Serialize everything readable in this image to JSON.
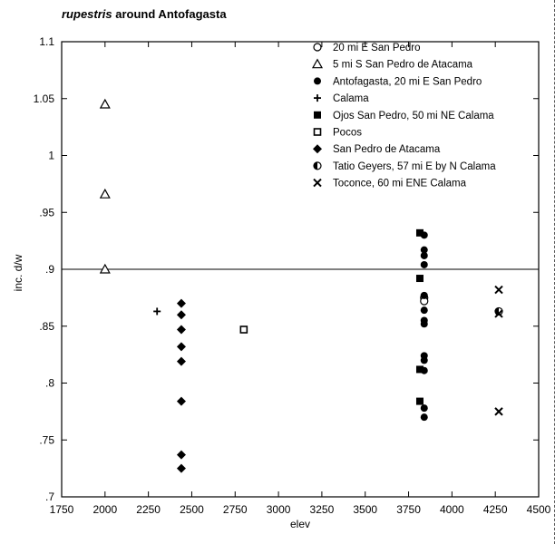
{
  "chart_data": {
    "type": "scatter",
    "title_italic": "rupestris",
    "title_rest": " around Antofagasta",
    "xlabel": "elev",
    "ylabel": "inc. d/w",
    "xlim": [
      1750,
      4500
    ],
    "ylim": [
      0.7,
      1.1
    ],
    "x_ticks": [
      1750,
      2000,
      2250,
      2500,
      2750,
      3000,
      3250,
      3500,
      3750,
      4000,
      4250,
      4500
    ],
    "y_ticks": [
      0.7,
      0.75,
      0.8,
      0.85,
      0.9,
      0.95,
      1.0,
      1.05,
      1.1
    ],
    "y_tick_labels": [
      ".7",
      ".75",
      ".8",
      ".85",
      ".9",
      ".95",
      "1",
      "1.05",
      "1.1"
    ],
    "reference_line_y": 0.9,
    "legend_position": "top-right",
    "grid": false,
    "series": [
      {
        "name": "20 mi E San Pedro",
        "marker": "open-circle",
        "points": [
          [
            3840,
            0.875
          ],
          [
            3840,
            0.872
          ]
        ]
      },
      {
        "name": "5 mi S San Pedro de Atacama",
        "marker": "open-triangle",
        "points": [
          [
            2000,
            1.045
          ],
          [
            2000,
            0.966
          ],
          [
            2000,
            0.9
          ]
        ]
      },
      {
        "name": "Antofagasta, 20 mi E San Pedro",
        "marker": "filled-circle",
        "points": [
          [
            3840,
            0.93
          ],
          [
            3840,
            0.917
          ],
          [
            3840,
            0.912
          ],
          [
            3840,
            0.904
          ],
          [
            3840,
            0.877
          ],
          [
            3840,
            0.864
          ],
          [
            3840,
            0.855
          ],
          [
            3840,
            0.852
          ],
          [
            3840,
            0.824
          ],
          [
            3840,
            0.82
          ],
          [
            3840,
            0.811
          ],
          [
            3840,
            0.778
          ],
          [
            3840,
            0.77
          ]
        ]
      },
      {
        "name": "Calama",
        "marker": "plus",
        "points": [
          [
            2300,
            0.863
          ]
        ]
      },
      {
        "name": "Ojos San Pedro, 50 mi NE Calama",
        "marker": "filled-square",
        "points": [
          [
            3815,
            0.932
          ],
          [
            3815,
            0.892
          ],
          [
            3815,
            0.812
          ],
          [
            3815,
            0.784
          ]
        ]
      },
      {
        "name": "Pocos",
        "marker": "open-square",
        "points": [
          [
            2800,
            0.847
          ]
        ]
      },
      {
        "name": "San Pedro de Atacama",
        "marker": "filled-diamond",
        "points": [
          [
            2440,
            0.87
          ],
          [
            2440,
            0.86
          ],
          [
            2440,
            0.847
          ],
          [
            2440,
            0.832
          ],
          [
            2440,
            0.819
          ],
          [
            2440,
            0.784
          ],
          [
            2440,
            0.737
          ],
          [
            2440,
            0.725
          ]
        ]
      },
      {
        "name": "Tatio Geyers, 57 mi E by N Calama",
        "marker": "half-circle",
        "points": [
          [
            4270,
            0.863
          ]
        ]
      },
      {
        "name": "Toconce, 60 mi ENE Calama",
        "marker": "cross",
        "points": [
          [
            4270,
            0.882
          ],
          [
            4270,
            0.861
          ],
          [
            4270,
            0.775
          ]
        ]
      }
    ]
  }
}
